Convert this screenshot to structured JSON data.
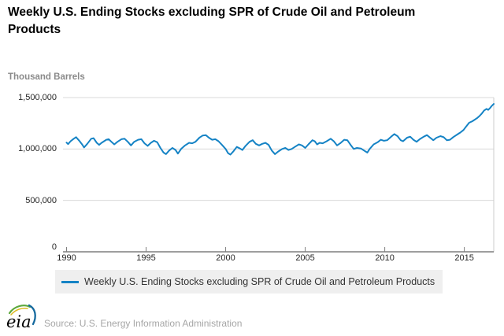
{
  "title": "Weekly U.S. Ending Stocks excluding SPR of Crude Oil and Petroleum Products",
  "y_axis": {
    "label": "Thousand Barrels",
    "ticks": [
      {
        "value": 0,
        "label": "0"
      },
      {
        "value": 500000,
        "label": "500,000"
      },
      {
        "value": 1000000,
        "label": "1,000,000"
      },
      {
        "value": 1500000,
        "label": "1,500,000"
      }
    ]
  },
  "x_axis": {
    "ticks": [
      {
        "value": 1990,
        "label": "1990"
      },
      {
        "value": 1995,
        "label": "1995"
      },
      {
        "value": 2000,
        "label": "2000"
      },
      {
        "value": 2005,
        "label": "2005"
      },
      {
        "value": 2010,
        "label": "2010"
      },
      {
        "value": 2015,
        "label": "2015"
      }
    ]
  },
  "legend": {
    "label": "Weekly U.S. Ending Stocks excluding SPR of Crude Oil and Petroleum Products"
  },
  "footer": {
    "logo_text": "eia",
    "source_text": "Source: U.S. Energy Information Administration"
  },
  "colors": {
    "line": "#1583c5",
    "grid": "#d9d9d9",
    "axis": "#7f7f7f",
    "plot_border": "#cccccc",
    "legend_bg": "#efefef",
    "logo_green": "#5ca83c",
    "logo_yellow": "#ddb91f",
    "logo_blue": "#15699e"
  },
  "chart_data": {
    "type": "line",
    "title": "Weekly U.S. Ending Stocks excluding SPR of Crude Oil and Petroleum Products",
    "xlabel": "",
    "ylabel": "Thousand Barrels",
    "xlim": [
      1990,
      2016.85
    ],
    "ylim": [
      0,
      1500000
    ],
    "x_ticks": [
      1990,
      1995,
      2000,
      2005,
      2010,
      2015
    ],
    "y_ticks": [
      0,
      500000,
      1000000,
      1500000
    ],
    "grid": "horizontal",
    "legend_position": "bottom",
    "series": [
      {
        "name": "Weekly U.S. Ending Stocks excluding SPR of Crude Oil and Petroleum Products",
        "color": "#1583c5",
        "points": [
          [
            1990.0,
            1062000
          ],
          [
            1990.1,
            1048000
          ],
          [
            1990.25,
            1075000
          ],
          [
            1990.45,
            1100000
          ],
          [
            1990.6,
            1115000
          ],
          [
            1990.8,
            1080000
          ],
          [
            1991.0,
            1040000
          ],
          [
            1991.1,
            1015000
          ],
          [
            1991.3,
            1050000
          ],
          [
            1991.55,
            1100000
          ],
          [
            1991.7,
            1105000
          ],
          [
            1991.9,
            1060000
          ],
          [
            1992.05,
            1040000
          ],
          [
            1992.2,
            1060000
          ],
          [
            1992.5,
            1090000
          ],
          [
            1992.65,
            1095000
          ],
          [
            1992.85,
            1065000
          ],
          [
            1993.0,
            1045000
          ],
          [
            1993.2,
            1070000
          ],
          [
            1993.45,
            1095000
          ],
          [
            1993.65,
            1100000
          ],
          [
            1993.85,
            1070000
          ],
          [
            1994.05,
            1035000
          ],
          [
            1994.25,
            1070000
          ],
          [
            1994.5,
            1090000
          ],
          [
            1994.7,
            1095000
          ],
          [
            1994.9,
            1055000
          ],
          [
            1995.1,
            1030000
          ],
          [
            1995.3,
            1060000
          ],
          [
            1995.5,
            1080000
          ],
          [
            1995.7,
            1065000
          ],
          [
            1995.9,
            1010000
          ],
          [
            1996.1,
            965000
          ],
          [
            1996.25,
            950000
          ],
          [
            1996.45,
            985000
          ],
          [
            1996.65,
            1010000
          ],
          [
            1996.85,
            990000
          ],
          [
            1997.0,
            955000
          ],
          [
            1997.2,
            1000000
          ],
          [
            1997.45,
            1035000
          ],
          [
            1997.7,
            1060000
          ],
          [
            1997.9,
            1055000
          ],
          [
            1998.1,
            1070000
          ],
          [
            1998.35,
            1110000
          ],
          [
            1998.55,
            1130000
          ],
          [
            1998.75,
            1135000
          ],
          [
            1998.95,
            1110000
          ],
          [
            1999.15,
            1090000
          ],
          [
            1999.35,
            1095000
          ],
          [
            1999.55,
            1075000
          ],
          [
            1999.8,
            1035000
          ],
          [
            2000.0,
            1000000
          ],
          [
            2000.15,
            960000
          ],
          [
            2000.3,
            945000
          ],
          [
            2000.5,
            980000
          ],
          [
            2000.7,
            1020000
          ],
          [
            2000.9,
            1005000
          ],
          [
            2001.05,
            990000
          ],
          [
            2001.25,
            1030000
          ],
          [
            2001.5,
            1070000
          ],
          [
            2001.7,
            1085000
          ],
          [
            2001.9,
            1050000
          ],
          [
            2002.1,
            1035000
          ],
          [
            2002.3,
            1050000
          ],
          [
            2002.5,
            1060000
          ],
          [
            2002.7,
            1040000
          ],
          [
            2002.9,
            985000
          ],
          [
            2003.1,
            950000
          ],
          [
            2003.3,
            975000
          ],
          [
            2003.55,
            1000000
          ],
          [
            2003.75,
            1010000
          ],
          [
            2003.95,
            990000
          ],
          [
            2004.15,
            1000000
          ],
          [
            2004.35,
            1020000
          ],
          [
            2004.6,
            1045000
          ],
          [
            2004.8,
            1035000
          ],
          [
            2005.0,
            1010000
          ],
          [
            2005.2,
            1045000
          ],
          [
            2005.45,
            1085000
          ],
          [
            2005.6,
            1075000
          ],
          [
            2005.75,
            1045000
          ],
          [
            2005.9,
            1060000
          ],
          [
            2006.1,
            1055000
          ],
          [
            2006.35,
            1075000
          ],
          [
            2006.6,
            1100000
          ],
          [
            2006.8,
            1075000
          ],
          [
            2007.0,
            1035000
          ],
          [
            2007.2,
            1055000
          ],
          [
            2007.45,
            1090000
          ],
          [
            2007.65,
            1085000
          ],
          [
            2007.85,
            1040000
          ],
          [
            2008.05,
            1000000
          ],
          [
            2008.25,
            1010000
          ],
          [
            2008.5,
            1005000
          ],
          [
            2008.7,
            985000
          ],
          [
            2008.9,
            965000
          ],
          [
            2009.05,
            1000000
          ],
          [
            2009.3,
            1045000
          ],
          [
            2009.55,
            1065000
          ],
          [
            2009.75,
            1090000
          ],
          [
            2009.95,
            1080000
          ],
          [
            2010.15,
            1085000
          ],
          [
            2010.4,
            1120000
          ],
          [
            2010.6,
            1145000
          ],
          [
            2010.8,
            1125000
          ],
          [
            2011.0,
            1085000
          ],
          [
            2011.15,
            1075000
          ],
          [
            2011.4,
            1110000
          ],
          [
            2011.6,
            1120000
          ],
          [
            2011.8,
            1090000
          ],
          [
            2012.0,
            1070000
          ],
          [
            2012.2,
            1095000
          ],
          [
            2012.45,
            1120000
          ],
          [
            2012.65,
            1135000
          ],
          [
            2012.85,
            1110000
          ],
          [
            2013.05,
            1085000
          ],
          [
            2013.25,
            1110000
          ],
          [
            2013.5,
            1125000
          ],
          [
            2013.7,
            1115000
          ],
          [
            2013.9,
            1085000
          ],
          [
            2014.1,
            1090000
          ],
          [
            2014.3,
            1115000
          ],
          [
            2014.55,
            1140000
          ],
          [
            2014.75,
            1160000
          ],
          [
            2014.95,
            1185000
          ],
          [
            2015.1,
            1215000
          ],
          [
            2015.3,
            1255000
          ],
          [
            2015.5,
            1270000
          ],
          [
            2015.65,
            1285000
          ],
          [
            2015.8,
            1300000
          ],
          [
            2015.95,
            1320000
          ],
          [
            2016.1,
            1345000
          ],
          [
            2016.25,
            1375000
          ],
          [
            2016.4,
            1390000
          ],
          [
            2016.5,
            1380000
          ],
          [
            2016.6,
            1395000
          ],
          [
            2016.7,
            1415000
          ],
          [
            2016.8,
            1430000
          ],
          [
            2016.85,
            1438000
          ]
        ]
      }
    ]
  }
}
